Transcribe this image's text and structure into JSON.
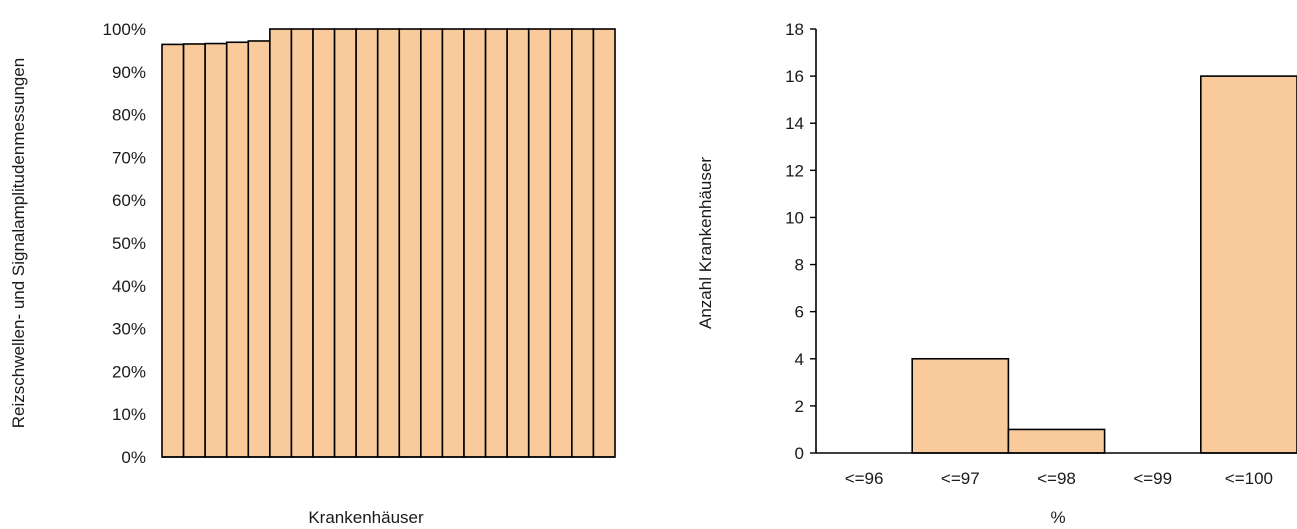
{
  "colors": {
    "bar_fill": "#F9CB9C",
    "bar_stroke": "#000000",
    "axis": "#000000"
  },
  "chart_data": [
    {
      "type": "bar",
      "xlabel": "Krankenhäuser",
      "ylabel": "Reizschwellen- und Signalamplitudenmessungen",
      "ylim": [
        0,
        1
      ],
      "yticks": [
        "0%",
        "10%",
        "20%",
        "30%",
        "40%",
        "50%",
        "60%",
        "70%",
        "80%",
        "90%",
        "100%"
      ],
      "values": [
        0.964,
        0.965,
        0.966,
        0.969,
        0.972,
        1,
        1,
        1,
        1,
        1,
        1,
        1,
        1,
        1,
        1,
        1,
        1,
        1,
        1,
        1,
        1
      ]
    },
    {
      "type": "bar",
      "xlabel": "%",
      "ylabel": "Anzahl Krankenhäuser",
      "ylim": [
        0,
        18
      ],
      "yticks": [
        "0",
        "2",
        "4",
        "6",
        "8",
        "10",
        "12",
        "14",
        "16",
        "18"
      ],
      "categories": [
        "<=96",
        "<=97",
        "<=98",
        "<=99",
        "<=100"
      ],
      "values": [
        0,
        4,
        1,
        0,
        16
      ]
    }
  ]
}
